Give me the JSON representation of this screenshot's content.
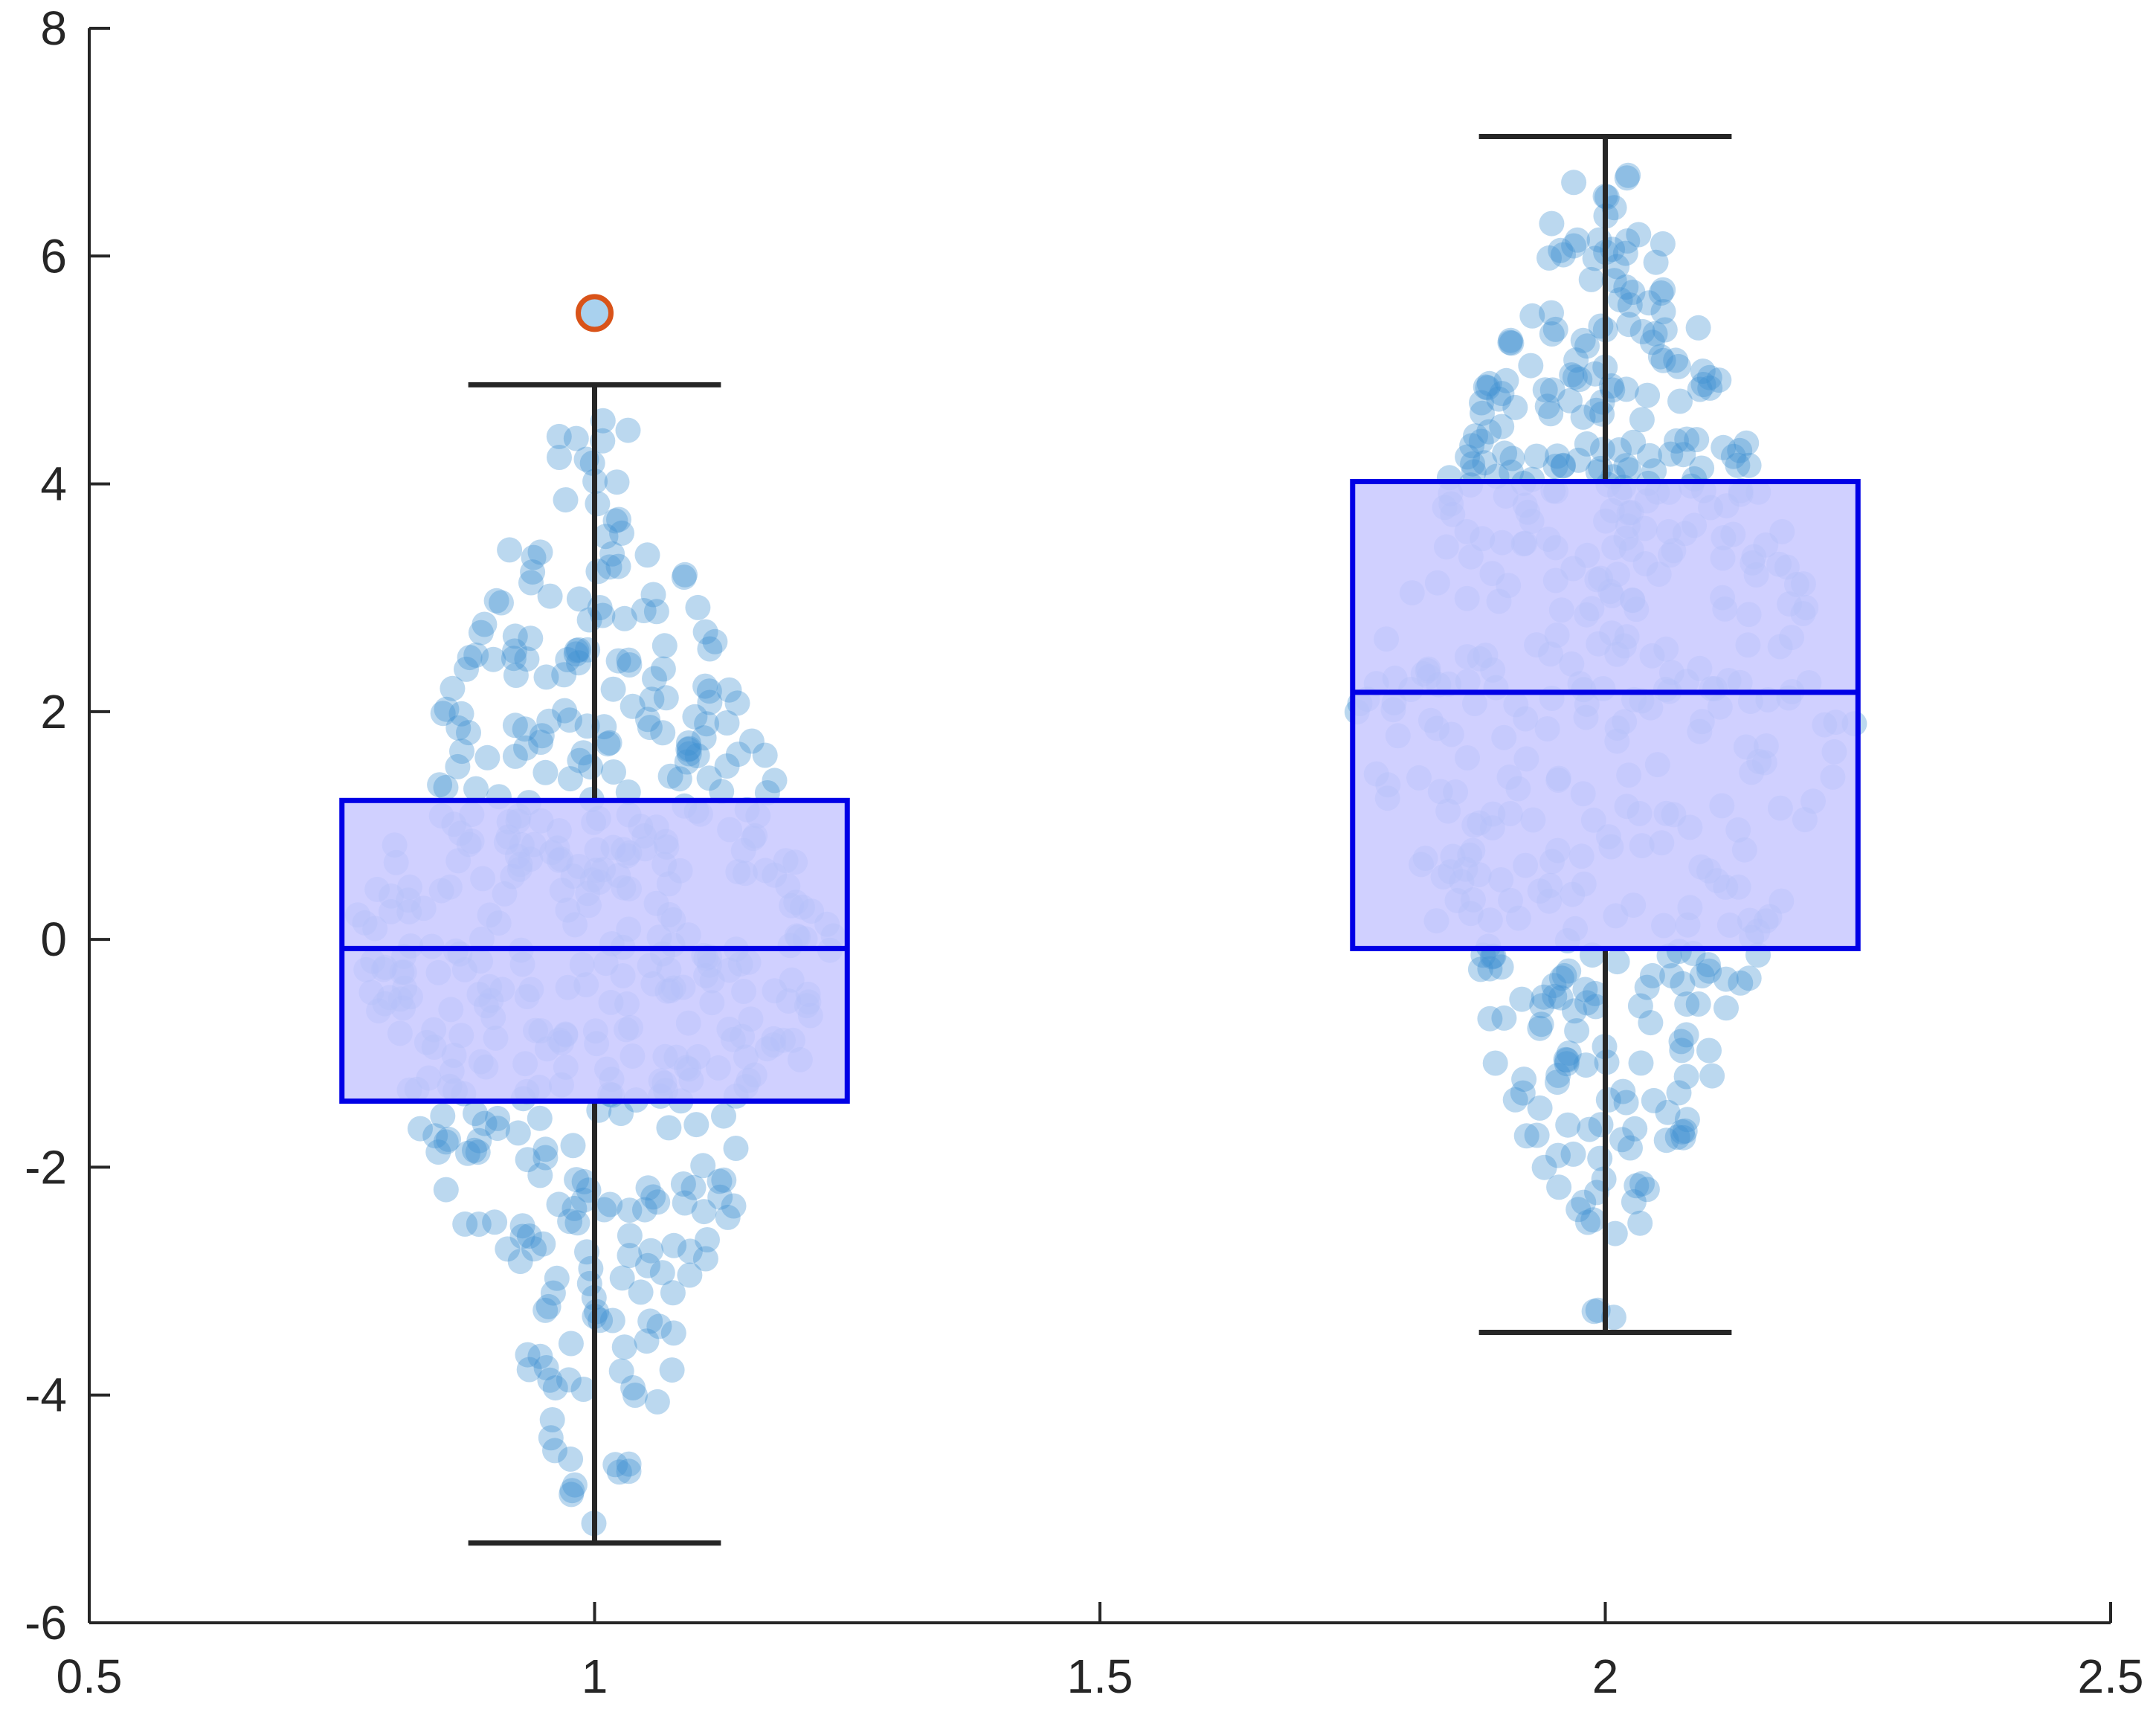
{
  "chart_data": {
    "type": "box",
    "xlim": [
      0.5,
      2.5
    ],
    "ylim": [
      -6,
      8
    ],
    "x_ticks": [
      {
        "value": 0.5,
        "label": "0.5"
      },
      {
        "value": 1,
        "label": "1"
      },
      {
        "value": 1.5,
        "label": "1.5"
      },
      {
        "value": 2,
        "label": "2"
      },
      {
        "value": 2.5,
        "label": "2.5"
      }
    ],
    "y_ticks": [
      {
        "value": -6,
        "label": "-6"
      },
      {
        "value": -4,
        "label": "-4"
      },
      {
        "value": -2,
        "label": "-2"
      },
      {
        "value": 0,
        "label": "0"
      },
      {
        "value": 2,
        "label": "2"
      },
      {
        "value": 4,
        "label": "4"
      },
      {
        "value": 6,
        "label": "6"
      },
      {
        "value": 8,
        "label": "8"
      }
    ],
    "title": "",
    "xlabel": "",
    "ylabel": "",
    "grid": false,
    "boxes": [
      {
        "position": 1,
        "q1": -1.42,
        "median": -0.08,
        "q3": 1.22,
        "whisker_low": -5.3,
        "whisker_high": 4.87,
        "outliers": [
          5.5
        ]
      },
      {
        "position": 2,
        "q1": -0.08,
        "median": 2.17,
        "q3": 4.02,
        "whisker_low": -3.45,
        "whisker_high": 7.05,
        "outliers": []
      }
    ],
    "scatter": {
      "count_per_group": 500,
      "jitter_halfwidth": 0.25,
      "alpha": 0.35
    },
    "colors": {
      "box_edge": "#0000e6",
      "box_fill": "#c8c8ff",
      "whisker": "#262626",
      "points": "#3c8ed0",
      "outlier_edge": "#d95319",
      "outlier_fill": "#a9d1ee",
      "axis": "#262626"
    }
  }
}
